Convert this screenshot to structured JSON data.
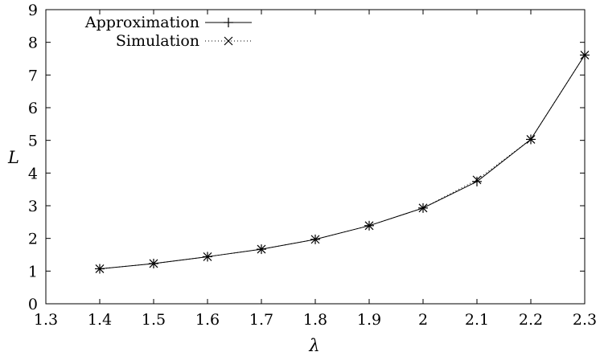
{
  "chart_data": {
    "type": "line",
    "xlabel": "λ",
    "ylabel": "L",
    "xlim": [
      1.3,
      2.3
    ],
    "ylim": [
      0,
      9
    ],
    "xticks": [
      "1.3",
      "1.4",
      "1.5",
      "1.6",
      "1.7",
      "1.8",
      "1.9",
      "2",
      "2.1",
      "2.2",
      "2.3"
    ],
    "yticks": [
      "0",
      "1",
      "2",
      "3",
      "4",
      "5",
      "6",
      "7",
      "8",
      "9"
    ],
    "grid": false,
    "legend_position": "top-left",
    "series": [
      {
        "name": "Approximation",
        "style": "solid line with plus markers",
        "x": [
          1.4,
          1.5,
          1.6,
          1.7,
          1.8,
          1.9,
          2.0,
          2.1,
          2.2,
          2.3
        ],
        "y": [
          1.07,
          1.23,
          1.44,
          1.67,
          1.97,
          2.39,
          2.93,
          3.74,
          5.03,
          7.61
        ]
      },
      {
        "name": "Simulation",
        "style": "dotted line with x markers",
        "x": [
          1.4,
          1.5,
          1.6,
          1.7,
          1.8,
          1.9,
          2.0,
          2.1,
          2.2,
          2.3
        ],
        "y": [
          1.07,
          1.23,
          1.44,
          1.67,
          1.97,
          2.39,
          2.93,
          3.79,
          5.03,
          7.61
        ]
      }
    ]
  }
}
